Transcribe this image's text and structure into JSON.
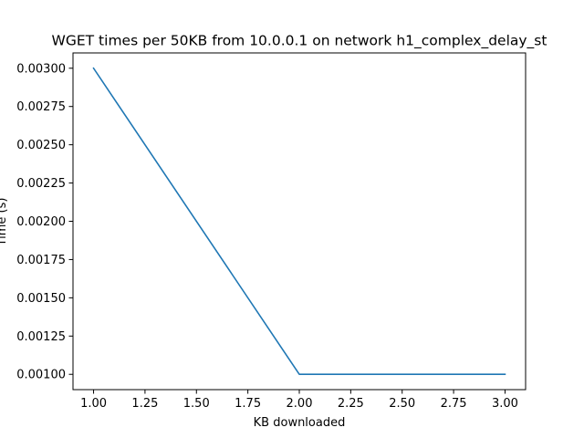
{
  "chart_data": {
    "type": "line",
    "title": "WGET times per 50KB from 10.0.0.1 on network h1_complex_delay_st",
    "xlabel": "KB downloaded",
    "ylabel": "Time (s)",
    "xlim": [
      0.9,
      3.1
    ],
    "ylim": [
      0.0009,
      0.0031
    ],
    "xticks": [
      1.0,
      1.25,
      1.5,
      1.75,
      2.0,
      2.25,
      2.5,
      2.75,
      3.0
    ],
    "xtick_labels": [
      "1.00",
      "1.25",
      "1.50",
      "1.75",
      "2.00",
      "2.25",
      "2.50",
      "2.75",
      "3.00"
    ],
    "yticks": [
      0.001,
      0.00125,
      0.0015,
      0.00175,
      0.002,
      0.00225,
      0.0025,
      0.00275,
      0.003
    ],
    "ytick_labels": [
      "0.00100",
      "0.00125",
      "0.00150",
      "0.00175",
      "0.00200",
      "0.00225",
      "0.00250",
      "0.00275",
      "0.00300"
    ],
    "grid": false,
    "series": [
      {
        "x": [
          1.0,
          2.0,
          3.0
        ],
        "y": [
          0.003,
          0.001,
          0.001
        ],
        "color": "#1f77b4"
      }
    ]
  }
}
